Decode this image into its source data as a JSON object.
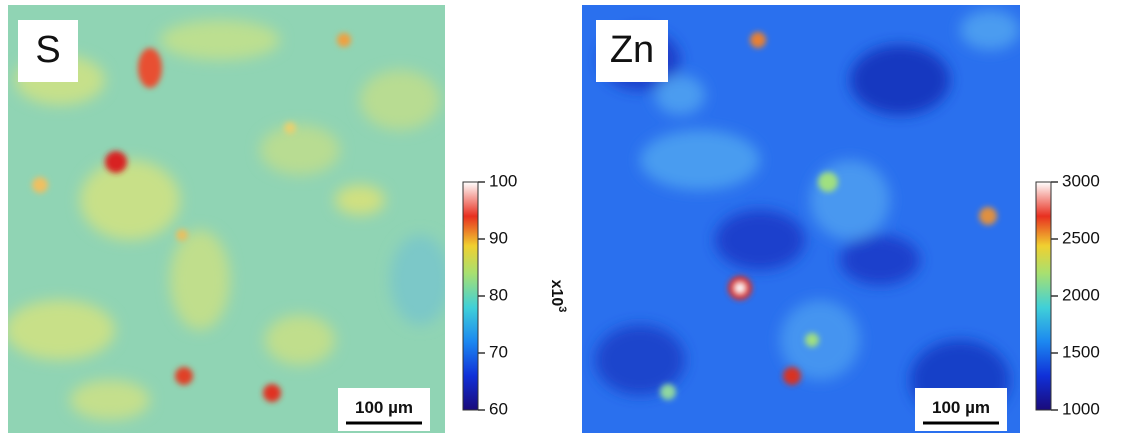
{
  "panels": [
    {
      "label": "S",
      "scale_bar": "100 µm",
      "colorbar": {
        "lim": [
          60,
          100
        ],
        "ticks": [
          60,
          70,
          80,
          90,
          100
        ],
        "unit_label": "x10",
        "unit_exponent": "3"
      }
    },
    {
      "label": "Zn",
      "scale_bar": "100 µm",
      "colorbar": {
        "lim": [
          1000,
          3000
        ],
        "ticks": [
          1000,
          1500,
          2000,
          2500,
          3000
        ]
      }
    }
  ]
}
